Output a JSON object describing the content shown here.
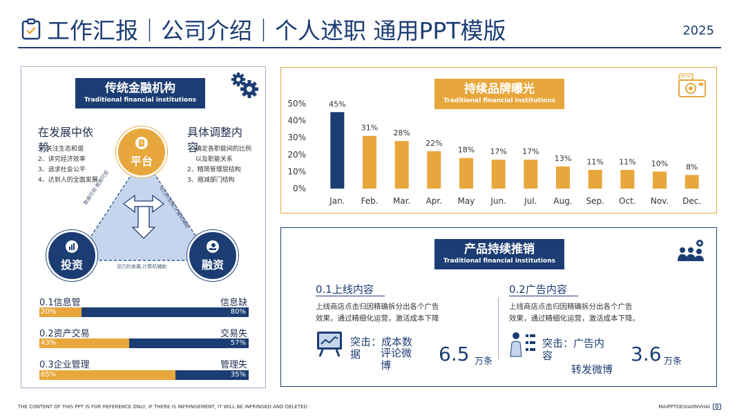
{
  "header": {
    "title": "工作汇报｜公司介绍｜个人述职 通用PPT模版",
    "year": "2025"
  },
  "left_panel": {
    "title": "传统金融机构",
    "subtitle": "Traditional financial institutions",
    "left_col": {
      "heading": "在发展中依赖",
      "items": [
        "关注生态和谐",
        "2、讲究经济效率",
        "3、追求社会公平",
        "4、达到人的全面发展"
      ]
    },
    "right_col": {
      "heading": "具体调整内容",
      "items": [
        "确定各职能间的比例以及职能关系",
        "2、精简管理层结构",
        "3、缩减部门结构"
      ]
    },
    "circles": {
      "top": "平台",
      "left": "投资",
      "right": "融资"
    },
    "triangle_texts": {
      "left": "数据可视 数据可视",
      "right": "动力的发展,计算机辅助",
      "bottom": "动力的发展,计算机辅助"
    },
    "progress": [
      {
        "label": "0.1信息管",
        "right_label": "信息缺",
        "left_pct": "20%",
        "right_pct": "80%",
        "fill": 0.2
      },
      {
        "label": "0.2资产交易",
        "right_label": "交易失",
        "left_pct": "43%",
        "right_pct": "57%",
        "fill": 0.43
      },
      {
        "label": "0.3企业管理",
        "right_label": "管理失",
        "left_pct": "65%",
        "right_pct": "35%",
        "fill": 0.65
      }
    ]
  },
  "bar_panel": {
    "title": "持续品牌曝光",
    "subtitle": "Traditional financial institutions",
    "icon_label": "神开始"
  },
  "chart_data": {
    "type": "bar",
    "categories": [
      "Jan.",
      "Feb.",
      "Mar.",
      "Apr.",
      "May",
      "Jun.",
      "Jul.",
      "Aug.",
      "Sep.",
      "Oct.",
      "Nov.",
      "Dec."
    ],
    "values": [
      45,
      31,
      28,
      22,
      18,
      17,
      17,
      13,
      11,
      11,
      10,
      8
    ],
    "value_labels": [
      "45%",
      "31%",
      "28%",
      "22%",
      "18%",
      "17%",
      "17%",
      "13%",
      "11%",
      "11%",
      "10%",
      "8%"
    ],
    "yticks": [
      "0%",
      "10%",
      "20%",
      "30%",
      "40%",
      "50%"
    ],
    "ylim": [
      0,
      50
    ],
    "highlight_color": "#1c3d73",
    "bar_color": "#e8a73c",
    "title": "",
    "xlabel": "",
    "ylabel": ""
  },
  "product_panel": {
    "title": "产品持续推销",
    "subtitle": "Traditional financial institutions",
    "left": {
      "heading": "0.1上线内容",
      "desc_1": "上线商店点击归因精确拆分出各个广告",
      "desc_2": "效果，通过精细化运营，激活成本下降",
      "highlight_1": "突击：成本数",
      "highlight_2": "据",
      "highlight_3": "评论微",
      "highlight_4": "博",
      "number": "6.5",
      "unit": "万条"
    },
    "right": {
      "heading": "0.2广告内容",
      "desc_1": "上线商店点击归因精确拆分出各个广告",
      "desc_2": "效果，通过精细化运营，激活成本下降。",
      "highlight_1": "突击：广告内",
      "highlight_2": "容",
      "highlight_3": "转发微博",
      "number": "3.6",
      "unit": "万条"
    }
  },
  "footer": {
    "left": "THE CONTENT OF THIS PPT IS FOR REFERENCE ONLY, IF THERE IS INFRINGEMENT, IT WILL BE INFRINGED AND DELETED",
    "right": "MAIPPTDEXIAONVHAI"
  },
  "colors": {
    "navy": "#1c3d73",
    "gold": "#e8a73c",
    "light_blue": "#c5d5ee"
  }
}
